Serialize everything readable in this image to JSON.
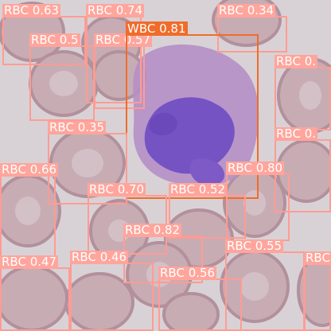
{
  "image": {
    "background_color": "#d8d2d6",
    "rbc_fill": "#c7a9b2",
    "rbc_rim": "#b18e9a",
    "wbc_cytoplasm": "#b28fc4",
    "wbc_nucleus": "#7a55c4"
  },
  "colors": {
    "rbc_box": "#ff9c93",
    "wbc_box": "#f06c2a",
    "label_text": "#ffffff"
  },
  "detections": [
    {
      "id": "rbc-1",
      "label": "RBC 0.63"
    },
    {
      "id": "rbc-2",
      "label": "RBC 0.74"
    },
    {
      "id": "rbc-3",
      "label": "RBC 0.34"
    },
    {
      "id": "rbc-4",
      "label": "RBC 0.5"
    },
    {
      "id": "rbc-5",
      "label": "RBC 0.57"
    },
    {
      "id": "wbc-1",
      "label": "WBC 0.81"
    },
    {
      "id": "rbc-6",
      "label": "RBC 0."
    },
    {
      "id": "rbc-7",
      "label": "RBC 0.35"
    },
    {
      "id": "rbc-8",
      "label": "RBC 0."
    },
    {
      "id": "rbc-9",
      "label": "RBC 0.66"
    },
    {
      "id": "rbc-10",
      "label": "RBC 0.80"
    },
    {
      "id": "rbc-11",
      "label": "RBC 0.70"
    },
    {
      "id": "rbc-12",
      "label": "RBC 0.52"
    },
    {
      "id": "rbc-13",
      "label": "RBC 0.82"
    },
    {
      "id": "rbc-14",
      "label": "RBC 0.55"
    },
    {
      "id": "rbc-15",
      "label": "RBC 0.46"
    },
    {
      "id": "rbc-16",
      "label": "RBC 0.47"
    },
    {
      "id": "rbc-17",
      "label": "RBC 0.56"
    },
    {
      "id": "rbc-18",
      "label": "RBC"
    }
  ]
}
